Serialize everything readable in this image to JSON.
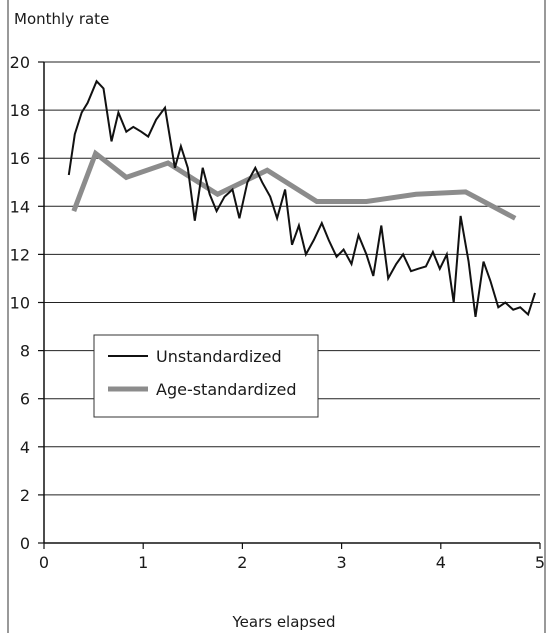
{
  "chart_data": {
    "type": "line",
    "title": "",
    "ylabel": "Monthly rate",
    "xlabel": "Years elapsed",
    "xlim": [
      0,
      5
    ],
    "ylim": [
      0,
      20
    ],
    "xticks": [
      0,
      1,
      2,
      3,
      4,
      5
    ],
    "yticks": [
      0,
      2,
      4,
      6,
      8,
      10,
      12,
      14,
      16,
      18,
      20
    ],
    "grid": "horizontal",
    "legend": {
      "position": "center-left",
      "entries": [
        "Unstandardized",
        "Age-standardized"
      ]
    },
    "series": [
      {
        "name": "Unstandardized",
        "color": "#111111",
        "x": [
          0.25,
          0.31,
          0.38,
          0.44,
          0.53,
          0.6,
          0.68,
          0.75,
          0.83,
          0.9,
          0.98,
          1.05,
          1.13,
          1.22,
          1.32,
          1.38,
          1.45,
          1.52,
          1.6,
          1.67,
          1.74,
          1.82,
          1.9,
          1.97,
          2.05,
          2.13,
          2.2,
          2.28,
          2.35,
          2.43,
          2.5,
          2.57,
          2.64,
          2.72,
          2.8,
          2.87,
          2.95,
          3.02,
          3.1,
          3.17,
          3.25,
          3.32,
          3.4,
          3.47,
          3.55,
          3.62,
          3.7,
          3.77,
          3.85,
          3.92,
          3.99,
          4.06,
          4.13,
          4.2,
          4.28,
          4.35,
          4.43,
          4.5,
          4.58,
          4.65,
          4.73,
          4.8,
          4.88,
          4.95
        ],
        "y": [
          15.3,
          17.0,
          17.9,
          18.3,
          19.2,
          18.9,
          16.7,
          17.9,
          17.1,
          17.3,
          17.1,
          16.9,
          17.6,
          18.1,
          15.6,
          16.5,
          15.6,
          13.4,
          15.6,
          14.5,
          13.8,
          14.4,
          14.7,
          13.5,
          15.0,
          15.6,
          15.0,
          14.4,
          13.5,
          14.7,
          12.4,
          13.2,
          12.0,
          12.6,
          13.3,
          12.6,
          11.9,
          12.2,
          11.6,
          12.8,
          12.0,
          11.1,
          13.2,
          11.0,
          11.6,
          12.0,
          11.3,
          11.4,
          11.5,
          12.1,
          11.4,
          12.0,
          10.0,
          13.6,
          11.7,
          9.4,
          11.7,
          10.9,
          9.8,
          10.0,
          9.7,
          9.8,
          9.5,
          10.4
        ]
      },
      {
        "name": "Age-standardized",
        "color": "#8c8c8c",
        "x": [
          0.3,
          0.52,
          0.83,
          1.25,
          1.75,
          2.25,
          2.75,
          3.25,
          3.75,
          4.25,
          4.75
        ],
        "y": [
          13.8,
          16.2,
          15.2,
          15.8,
          14.5,
          15.5,
          14.2,
          14.2,
          14.5,
          14.6,
          13.5
        ]
      }
    ]
  }
}
